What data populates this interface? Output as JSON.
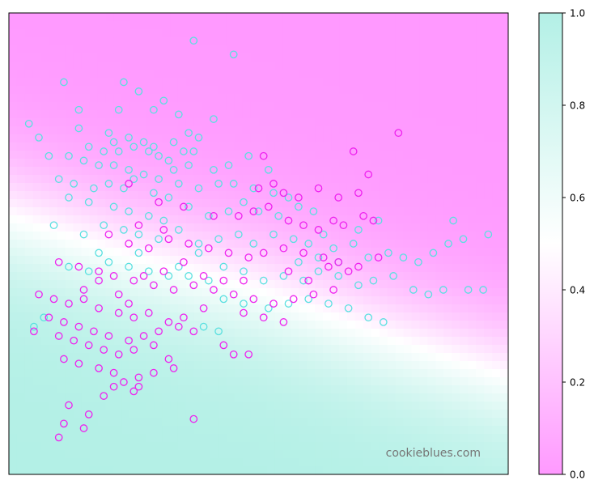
{
  "chart_data": {
    "type": "scatter",
    "title": "",
    "xlabel": "",
    "ylabel": "",
    "watermark": "cookieblues.com",
    "axis_ticks_visible": false,
    "background": {
      "description": "probability field gradient",
      "color_low": "#ff99ff",
      "color_mid": "#ffffff",
      "color_high": "#b3f0e6",
      "decision_boundary_points": [
        [
          0,
          0.56
        ],
        [
          0.25,
          0.47
        ],
        [
          0.5,
          0.4
        ],
        [
          0.75,
          0.3
        ],
        [
          1.0,
          0.21
        ]
      ]
    },
    "colorbar": {
      "ticks": [
        "0.0",
        "0.2",
        "0.4",
        "0.6",
        "0.8",
        "1.0"
      ],
      "tick_values": [
        0,
        0.2,
        0.4,
        0.6,
        0.8,
        1.0
      ],
      "vlim": [
        0,
        1
      ]
    },
    "xlim": [
      0,
      1
    ],
    "ylim": [
      0,
      1
    ],
    "series": [
      {
        "class": "cyan",
        "color": "#5ae0e0",
        "points": [
          [
            0.37,
            0.94
          ],
          [
            0.45,
            0.91
          ],
          [
            0.11,
            0.85
          ],
          [
            0.23,
            0.85
          ],
          [
            0.26,
            0.83
          ],
          [
            0.14,
            0.79
          ],
          [
            0.22,
            0.79
          ],
          [
            0.29,
            0.79
          ],
          [
            0.34,
            0.78
          ],
          [
            0.31,
            0.81
          ],
          [
            0.04,
            0.76
          ],
          [
            0.06,
            0.73
          ],
          [
            0.14,
            0.75
          ],
          [
            0.2,
            0.74
          ],
          [
            0.21,
            0.72
          ],
          [
            0.24,
            0.73
          ],
          [
            0.27,
            0.72
          ],
          [
            0.29,
            0.71
          ],
          [
            0.33,
            0.72
          ],
          [
            0.36,
            0.74
          ],
          [
            0.38,
            0.73
          ],
          [
            0.41,
            0.77
          ],
          [
            0.16,
            0.71
          ],
          [
            0.19,
            0.7
          ],
          [
            0.22,
            0.7
          ],
          [
            0.25,
            0.71
          ],
          [
            0.28,
            0.7
          ],
          [
            0.3,
            0.69
          ],
          [
            0.32,
            0.68
          ],
          [
            0.35,
            0.7
          ],
          [
            0.37,
            0.7
          ],
          [
            0.08,
            0.69
          ],
          [
            0.12,
            0.69
          ],
          [
            0.15,
            0.68
          ],
          [
            0.18,
            0.67
          ],
          [
            0.21,
            0.67
          ],
          [
            0.24,
            0.66
          ],
          [
            0.27,
            0.65
          ],
          [
            0.3,
            0.64
          ],
          [
            0.33,
            0.66
          ],
          [
            0.36,
            0.67
          ],
          [
            0.41,
            0.66
          ],
          [
            0.44,
            0.67
          ],
          [
            0.48,
            0.69
          ],
          [
            0.52,
            0.66
          ],
          [
            0.1,
            0.64
          ],
          [
            0.13,
            0.63
          ],
          [
            0.17,
            0.62
          ],
          [
            0.2,
            0.63
          ],
          [
            0.23,
            0.62
          ],
          [
            0.25,
            0.64
          ],
          [
            0.29,
            0.61
          ],
          [
            0.32,
            0.6
          ],
          [
            0.34,
            0.63
          ],
          [
            0.38,
            0.62
          ],
          [
            0.42,
            0.63
          ],
          [
            0.45,
            0.63
          ],
          [
            0.49,
            0.62
          ],
          [
            0.53,
            0.61
          ],
          [
            0.56,
            0.6
          ],
          [
            0.12,
            0.6
          ],
          [
            0.16,
            0.59
          ],
          [
            0.21,
            0.58
          ],
          [
            0.24,
            0.57
          ],
          [
            0.28,
            0.56
          ],
          [
            0.31,
            0.55
          ],
          [
            0.36,
            0.58
          ],
          [
            0.4,
            0.56
          ],
          [
            0.44,
            0.57
          ],
          [
            0.47,
            0.59
          ],
          [
            0.5,
            0.57
          ],
          [
            0.54,
            0.56
          ],
          [
            0.58,
            0.58
          ],
          [
            0.61,
            0.57
          ],
          [
            0.09,
            0.54
          ],
          [
            0.15,
            0.52
          ],
          [
            0.19,
            0.54
          ],
          [
            0.23,
            0.53
          ],
          [
            0.26,
            0.52
          ],
          [
            0.3,
            0.51
          ],
          [
            0.34,
            0.53
          ],
          [
            0.38,
            0.5
          ],
          [
            0.42,
            0.51
          ],
          [
            0.46,
            0.52
          ],
          [
            0.49,
            0.5
          ],
          [
            0.53,
            0.52
          ],
          [
            0.57,
            0.51
          ],
          [
            0.6,
            0.5
          ],
          [
            0.63,
            0.52
          ],
          [
            0.65,
            0.49
          ],
          [
            0.69,
            0.5
          ],
          [
            0.72,
            0.47
          ],
          [
            0.76,
            0.48
          ],
          [
            0.79,
            0.47
          ],
          [
            0.82,
            0.46
          ],
          [
            0.85,
            0.48
          ],
          [
            0.88,
            0.5
          ],
          [
            0.91,
            0.51
          ],
          [
            0.96,
            0.52
          ],
          [
            0.89,
            0.55
          ],
          [
            0.7,
            0.53
          ],
          [
            0.74,
            0.55
          ],
          [
            0.12,
            0.45
          ],
          [
            0.16,
            0.44
          ],
          [
            0.2,
            0.46
          ],
          [
            0.24,
            0.45
          ],
          [
            0.28,
            0.44
          ],
          [
            0.32,
            0.43
          ],
          [
            0.36,
            0.43
          ],
          [
            0.4,
            0.42
          ],
          [
            0.43,
            0.45
          ],
          [
            0.47,
            0.44
          ],
          [
            0.51,
            0.42
          ],
          [
            0.55,
            0.43
          ],
          [
            0.59,
            0.42
          ],
          [
            0.62,
            0.44
          ],
          [
            0.66,
            0.43
          ],
          [
            0.7,
            0.41
          ],
          [
            0.73,
            0.42
          ],
          [
            0.77,
            0.43
          ],
          [
            0.81,
            0.4
          ],
          [
            0.84,
            0.39
          ],
          [
            0.87,
            0.4
          ],
          [
            0.92,
            0.4
          ],
          [
            0.95,
            0.4
          ],
          [
            0.43,
            0.38
          ],
          [
            0.47,
            0.37
          ],
          [
            0.52,
            0.36
          ],
          [
            0.56,
            0.37
          ],
          [
            0.6,
            0.38
          ],
          [
            0.64,
            0.37
          ],
          [
            0.68,
            0.36
          ],
          [
            0.72,
            0.34
          ],
          [
            0.75,
            0.33
          ],
          [
            0.39,
            0.32
          ],
          [
            0.42,
            0.31
          ],
          [
            0.34,
            0.45
          ],
          [
            0.38,
            0.48
          ],
          [
            0.58,
            0.46
          ],
          [
            0.62,
            0.47
          ],
          [
            0.66,
            0.46
          ],
          [
            0.05,
            0.32
          ],
          [
            0.07,
            0.34
          ],
          [
            0.18,
            0.48
          ],
          [
            0.26,
            0.48
          ]
        ]
      },
      {
        "class": "magenta",
        "color": "#ee22ee",
        "points": [
          [
            0.78,
            0.74
          ],
          [
            0.51,
            0.69
          ],
          [
            0.69,
            0.7
          ],
          [
            0.24,
            0.63
          ],
          [
            0.5,
            0.62
          ],
          [
            0.53,
            0.63
          ],
          [
            0.55,
            0.61
          ],
          [
            0.58,
            0.6
          ],
          [
            0.62,
            0.62
          ],
          [
            0.66,
            0.6
          ],
          [
            0.7,
            0.61
          ],
          [
            0.72,
            0.65
          ],
          [
            0.3,
            0.59
          ],
          [
            0.35,
            0.58
          ],
          [
            0.41,
            0.56
          ],
          [
            0.46,
            0.56
          ],
          [
            0.49,
            0.57
          ],
          [
            0.52,
            0.58
          ],
          [
            0.56,
            0.55
          ],
          [
            0.59,
            0.54
          ],
          [
            0.62,
            0.53
          ],
          [
            0.65,
            0.55
          ],
          [
            0.67,
            0.54
          ],
          [
            0.71,
            0.56
          ],
          [
            0.73,
            0.55
          ],
          [
            0.26,
            0.54
          ],
          [
            0.31,
            0.53
          ],
          [
            0.2,
            0.52
          ],
          [
            0.24,
            0.5
          ],
          [
            0.28,
            0.49
          ],
          [
            0.32,
            0.51
          ],
          [
            0.36,
            0.5
          ],
          [
            0.4,
            0.49
          ],
          [
            0.44,
            0.48
          ],
          [
            0.48,
            0.47
          ],
          [
            0.51,
            0.48
          ],
          [
            0.55,
            0.49
          ],
          [
            0.59,
            0.48
          ],
          [
            0.63,
            0.47
          ],
          [
            0.66,
            0.46
          ],
          [
            0.7,
            0.45
          ],
          [
            0.74,
            0.47
          ],
          [
            0.1,
            0.46
          ],
          [
            0.14,
            0.45
          ],
          [
            0.18,
            0.44
          ],
          [
            0.21,
            0.43
          ],
          [
            0.25,
            0.42
          ],
          [
            0.29,
            0.41
          ],
          [
            0.33,
            0.4
          ],
          [
            0.37,
            0.41
          ],
          [
            0.41,
            0.4
          ],
          [
            0.45,
            0.39
          ],
          [
            0.49,
            0.38
          ],
          [
            0.53,
            0.37
          ],
          [
            0.57,
            0.38
          ],
          [
            0.61,
            0.39
          ],
          [
            0.65,
            0.4
          ],
          [
            0.06,
            0.39
          ],
          [
            0.09,
            0.38
          ],
          [
            0.12,
            0.37
          ],
          [
            0.15,
            0.38
          ],
          [
            0.18,
            0.36
          ],
          [
            0.22,
            0.35
          ],
          [
            0.25,
            0.34
          ],
          [
            0.28,
            0.35
          ],
          [
            0.32,
            0.33
          ],
          [
            0.35,
            0.34
          ],
          [
            0.39,
            0.36
          ],
          [
            0.47,
            0.35
          ],
          [
            0.51,
            0.34
          ],
          [
            0.55,
            0.33
          ],
          [
            0.08,
            0.34
          ],
          [
            0.11,
            0.33
          ],
          [
            0.14,
            0.32
          ],
          [
            0.17,
            0.31
          ],
          [
            0.2,
            0.3
          ],
          [
            0.24,
            0.29
          ],
          [
            0.27,
            0.3
          ],
          [
            0.3,
            0.31
          ],
          [
            0.34,
            0.32
          ],
          [
            0.37,
            0.31
          ],
          [
            0.05,
            0.31
          ],
          [
            0.1,
            0.3
          ],
          [
            0.13,
            0.29
          ],
          [
            0.16,
            0.28
          ],
          [
            0.19,
            0.27
          ],
          [
            0.22,
            0.26
          ],
          [
            0.25,
            0.27
          ],
          [
            0.29,
            0.28
          ],
          [
            0.32,
            0.25
          ],
          [
            0.43,
            0.28
          ],
          [
            0.45,
            0.26
          ],
          [
            0.48,
            0.26
          ],
          [
            0.11,
            0.25
          ],
          [
            0.14,
            0.24
          ],
          [
            0.18,
            0.23
          ],
          [
            0.21,
            0.22
          ],
          [
            0.23,
            0.2
          ],
          [
            0.26,
            0.21
          ],
          [
            0.29,
            0.22
          ],
          [
            0.33,
            0.23
          ],
          [
            0.21,
            0.19
          ],
          [
            0.25,
            0.18
          ],
          [
            0.19,
            0.17
          ],
          [
            0.12,
            0.15
          ],
          [
            0.16,
            0.13
          ],
          [
            0.11,
            0.11
          ],
          [
            0.15,
            0.1
          ],
          [
            0.37,
            0.12
          ],
          [
            0.1,
            0.08
          ],
          [
            0.26,
            0.19
          ],
          [
            0.15,
            0.4
          ],
          [
            0.18,
            0.42
          ],
          [
            0.22,
            0.39
          ],
          [
            0.24,
            0.37
          ],
          [
            0.27,
            0.43
          ],
          [
            0.31,
            0.44
          ],
          [
            0.35,
            0.46
          ],
          [
            0.39,
            0.43
          ],
          [
            0.43,
            0.42
          ],
          [
            0.47,
            0.42
          ],
          [
            0.56,
            0.44
          ],
          [
            0.6,
            0.42
          ],
          [
            0.64,
            0.45
          ],
          [
            0.68,
            0.44
          ]
        ]
      }
    ]
  }
}
